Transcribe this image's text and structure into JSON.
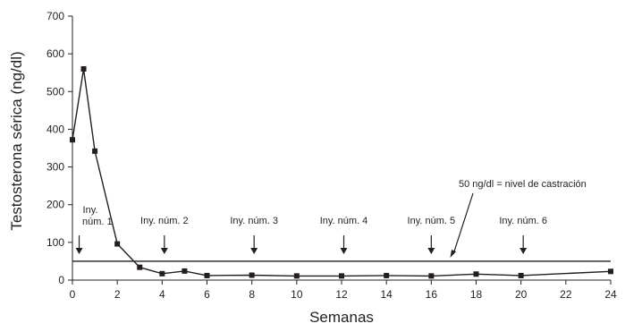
{
  "chart_data": {
    "type": "line",
    "title": "",
    "xlabel": "Semanas",
    "ylabel": "Testosterona sérica (ng/dl)",
    "xlim": [
      0,
      24
    ],
    "ylim": [
      0,
      700
    ],
    "xticks": [
      0,
      2,
      4,
      6,
      8,
      10,
      12,
      14,
      16,
      18,
      20,
      22,
      24
    ],
    "yticks": [
      0,
      100,
      200,
      300,
      400,
      500,
      600,
      700
    ],
    "grid": false,
    "series": [
      {
        "x": [
          0,
          0.5,
          1,
          2,
          3,
          4,
          5,
          6,
          8,
          10,
          12,
          14,
          16,
          18,
          20,
          24
        ],
        "y": [
          372,
          560,
          342,
          96,
          34,
          17,
          24,
          12,
          13,
          11,
          11,
          12,
          11,
          16,
          12,
          23
        ]
      }
    ],
    "reference_line": {
      "y": 50,
      "label": "50 ng/dl = nivel de castración"
    },
    "injections": [
      {
        "label_line1": "Iny.",
        "label_line2": "núm. 1",
        "week": 0.3
      },
      {
        "label": "Iny. núm. 2",
        "week": 4.1
      },
      {
        "label": "Iny. núm. 3",
        "week": 8.1
      },
      {
        "label": "Iny. núm. 4",
        "week": 12.1
      },
      {
        "label": "Iny. núm. 5",
        "week": 16.0
      },
      {
        "label": "Iny. núm. 6",
        "week": 20.1
      }
    ]
  }
}
